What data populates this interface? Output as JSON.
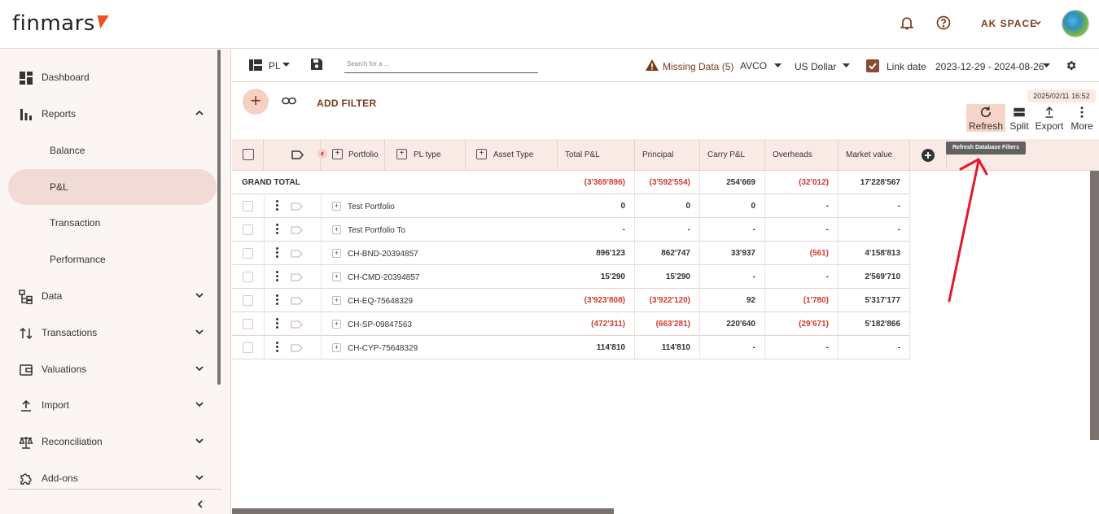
{
  "header": {
    "logo_text": "finmars",
    "space_label": "AK SPACE",
    "icons": [
      "bell-icon",
      "help-icon",
      "chevron-down-icon",
      "avatar"
    ]
  },
  "sidebar": {
    "items": [
      {
        "label": "Dashboard",
        "icon": "dashboard-icon"
      },
      {
        "label": "Reports",
        "icon": "bar-chart-icon",
        "expanded": true
      },
      {
        "label": "Balance",
        "sub": true
      },
      {
        "label": "P&L",
        "sub": true,
        "active": true
      },
      {
        "label": "Transaction",
        "sub": true
      },
      {
        "label": "Performance",
        "sub": true
      },
      {
        "label": "Data",
        "icon": "data-icon"
      },
      {
        "label": "Transactions",
        "icon": "transfer-icon"
      },
      {
        "label": "Valuations",
        "icon": "wallet-icon"
      },
      {
        "label": "Import",
        "icon": "upload-icon"
      },
      {
        "label": "Reconciliation",
        "icon": "scale-icon"
      },
      {
        "label": "Add-ons",
        "icon": "puzzle-icon"
      }
    ]
  },
  "toolbar": {
    "layout_label": "PL",
    "search_placeholder": "Search for a ...",
    "missing_data": "Missing Data (5)",
    "cost_method": "AVCO",
    "currency": "US Dollar",
    "link_date": "Link date",
    "date_range": "2023-12-29 - 2024-08-26",
    "add_filter": "ADD FILTER",
    "timestamp": "2025/02/11 16:52",
    "actions": {
      "refresh": "Refresh",
      "split": "Split",
      "export": "Export",
      "more": "More"
    },
    "tooltip": "Refresh Database Filters"
  },
  "table": {
    "group_columns": [
      "Portfolio",
      "PL type",
      "Asset Type"
    ],
    "value_columns": [
      "Total P&L",
      "Principal",
      "Carry P&L",
      "Overheads",
      "Market value"
    ],
    "grand_total": {
      "label": "GRAND TOTAL",
      "values": [
        {
          "v": "(3'369'896)",
          "neg": true
        },
        {
          "v": "(3'592'554)",
          "neg": true
        },
        {
          "v": "254'669",
          "neg": false
        },
        {
          "v": "(32'012)",
          "neg": true
        },
        {
          "v": "17'228'567",
          "neg": false
        }
      ]
    },
    "rows": [
      {
        "name": "Test Portfolio",
        "values": [
          {
            "v": "0"
          },
          {
            "v": "0"
          },
          {
            "v": "0"
          },
          {
            "v": "-"
          },
          {
            "v": "-"
          }
        ]
      },
      {
        "name": "Test Portfolio To",
        "values": [
          {
            "v": "-"
          },
          {
            "v": "-"
          },
          {
            "v": "-"
          },
          {
            "v": "-"
          },
          {
            "v": "-"
          }
        ]
      },
      {
        "name": "CH-BND-20394857",
        "values": [
          {
            "v": "896'123"
          },
          {
            "v": "862'747"
          },
          {
            "v": "33'937"
          },
          {
            "v": "(561)",
            "neg": true
          },
          {
            "v": "4'158'813"
          }
        ]
      },
      {
        "name": "CH-CMD-20394857",
        "values": [
          {
            "v": "15'290"
          },
          {
            "v": "15'290"
          },
          {
            "v": "-"
          },
          {
            "v": "-"
          },
          {
            "v": "2'569'710"
          }
        ]
      },
      {
        "name": "CH-EQ-75648329",
        "values": [
          {
            "v": "(3'923'808)",
            "neg": true
          },
          {
            "v": "(3'922'120)",
            "neg": true
          },
          {
            "v": "92"
          },
          {
            "v": "(1'780)",
            "neg": true
          },
          {
            "v": "5'317'177"
          }
        ]
      },
      {
        "name": "CH-SP-09847563",
        "values": [
          {
            "v": "(472'311)",
            "neg": true
          },
          {
            "v": "(663'281)",
            "neg": true
          },
          {
            "v": "220'640"
          },
          {
            "v": "(29'671)",
            "neg": true
          },
          {
            "v": "5'182'866"
          }
        ]
      },
      {
        "name": "CH-CYP-75648329",
        "values": [
          {
            "v": "114'810"
          },
          {
            "v": "114'810"
          },
          {
            "v": "-"
          },
          {
            "v": "-"
          },
          {
            "v": "-"
          }
        ]
      }
    ]
  },
  "colors": {
    "accent": "#7b3b1c",
    "negative": "#d23a2f",
    "highlight": "#f8d3c7",
    "active_nav": "#f0dbd6"
  }
}
